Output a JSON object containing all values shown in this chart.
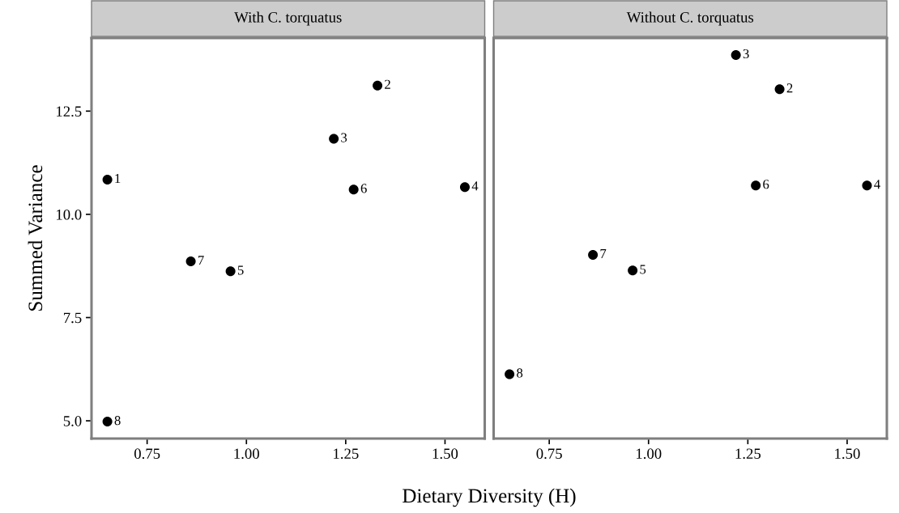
{
  "chart_data": [
    {
      "type": "scatter",
      "title": "With C. torquatus",
      "ylabel": "Summed Variance",
      "xlabel": "Dietary Diversity (H)",
      "x": [
        0.65,
        1.33,
        1.22,
        1.55,
        0.96,
        1.27,
        0.86,
        0.65
      ],
      "series": [
        {
          "color": "#000000",
          "values": [
            10.84,
            13.12,
            11.83,
            10.66,
            8.62,
            10.6,
            8.86,
            4.98
          ]
        }
      ],
      "annotations": [
        {
          "text": "1",
          "x": 0.65,
          "y": 10.84
        },
        {
          "text": "2",
          "x": 1.33,
          "y": 13.12
        },
        {
          "text": "3",
          "x": 1.22,
          "y": 11.83
        },
        {
          "text": "4",
          "x": 1.55,
          "y": 10.66
        },
        {
          "text": "5",
          "x": 0.96,
          "y": 8.62
        },
        {
          "text": "6",
          "x": 1.27,
          "y": 10.6
        },
        {
          "text": "7",
          "x": 0.86,
          "y": 8.86
        },
        {
          "text": "8",
          "x": 0.65,
          "y": 4.98
        }
      ],
      "xlim": [
        0.61,
        1.6
      ],
      "ylim": [
        4.57,
        14.27
      ],
      "xticks": [
        {
          "value": 0.75,
          "label": "0.75"
        },
        {
          "value": 1.0,
          "label": "1.00"
        },
        {
          "value": 1.25,
          "label": "1.25"
        },
        {
          "value": 1.5,
          "label": "1.50"
        }
      ],
      "yticks": [
        {
          "value": 5,
          "label": "5.0"
        },
        {
          "value": 7.5,
          "label": "7.5"
        },
        {
          "value": 10,
          "label": "10.0"
        },
        {
          "value": 12.5,
          "label": "12.5"
        }
      ],
      "marker": "circle",
      "grid": false,
      "legend": false
    },
    {
      "type": "scatter",
      "title": "Without C. torquatus",
      "x": [
        1.33,
        1.22,
        1.55,
        0.96,
        1.27,
        0.86,
        0.65
      ],
      "series": [
        {
          "color": "#000000",
          "values": [
            13.03,
            13.86,
            10.7,
            8.64,
            10.7,
            9.02,
            6.13
          ]
        }
      ],
      "annotations": [
        {
          "text": "8",
          "x": 0.65,
          "y": 6.13
        },
        {
          "text": "2",
          "x": 1.33,
          "y": 13.03
        },
        {
          "text": "3",
          "x": 1.22,
          "y": 13.86
        },
        {
          "text": "4",
          "x": 1.55,
          "y": 10.7
        },
        {
          "text": "5",
          "x": 0.96,
          "y": 8.64
        },
        {
          "text": "6",
          "x": 1.27,
          "y": 10.7
        },
        {
          "text": "7",
          "x": 0.86,
          "y": 9.02
        }
      ],
      "xlim": [
        0.61,
        1.6
      ],
      "ylim": [
        4.57,
        14.27
      ],
      "xticks": [
        {
          "value": 0.75,
          "label": "0.75"
        },
        {
          "value": 1.0,
          "label": "1.00"
        },
        {
          "value": 1.25,
          "label": "1.25"
        },
        {
          "value": 1.5,
          "label": "1.50"
        }
      ],
      "tick_labels": "x",
      "marker": "circle",
      "grid": false,
      "legend": false
    }
  ]
}
